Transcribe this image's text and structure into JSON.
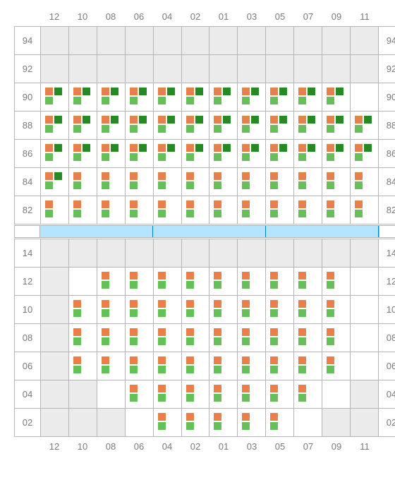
{
  "colors": {
    "orange": "#e8804c",
    "light_green": "#67bf5c",
    "dark_green": "#248a23",
    "grid_line": "#b5b5b5",
    "cell_grey": "#ebebeb",
    "cell_white": "#ffffff",
    "bar_fill": "#b4e4ff",
    "bar_border": "#0084c8",
    "label_text": "#7a7a7a"
  },
  "glyph_patterns": {
    "A": {
      "top_left": "orange",
      "top_right": "dark_green",
      "bot_left": "light_green"
    },
    "B": {
      "top_left": "orange",
      "top_right": null,
      "bot_left": "light_green"
    }
  },
  "column_labels": [
    "12",
    "10",
    "08",
    "06",
    "04",
    "02",
    "01",
    "03",
    "05",
    "07",
    "09",
    "11"
  ],
  "upper_rows": [
    {
      "label": "94",
      "cells": [
        0,
        0,
        0,
        0,
        0,
        0,
        0,
        0,
        0,
        0,
        0,
        0
      ]
    },
    {
      "label": "92",
      "cells": [
        0,
        0,
        0,
        0,
        0,
        0,
        0,
        0,
        0,
        0,
        0,
        0
      ]
    },
    {
      "label": "90",
      "cells": [
        "A",
        "A",
        "A",
        "A",
        "A",
        "A",
        "A",
        "A",
        "A",
        "A",
        "A",
        "W"
      ]
    },
    {
      "label": "88",
      "cells": [
        "A",
        "A",
        "A",
        "A",
        "A",
        "A",
        "A",
        "A",
        "A",
        "A",
        "A",
        "A"
      ]
    },
    {
      "label": "86",
      "cells": [
        "A",
        "A",
        "A",
        "A",
        "A",
        "A",
        "A",
        "A",
        "A",
        "A",
        "A",
        "A"
      ]
    },
    {
      "label": "84",
      "cells": [
        "A",
        "B",
        "B",
        "B",
        "B",
        "B",
        "B",
        "B",
        "B",
        "B",
        "B",
        "B"
      ]
    },
    {
      "label": "82",
      "cells": [
        "B",
        "B",
        "B",
        "B",
        "B",
        "B",
        "B",
        "B",
        "B",
        "B",
        "B",
        "B"
      ]
    }
  ],
  "bar_segments": [
    4,
    4,
    4
  ],
  "lower_rows": [
    {
      "label": "14",
      "cells": [
        0,
        0,
        0,
        0,
        0,
        0,
        0,
        0,
        0,
        0,
        0,
        0
      ]
    },
    {
      "label": "12",
      "cells": [
        0,
        "W",
        "B",
        "B",
        "B",
        "B",
        "B",
        "B",
        "B",
        "B",
        "B",
        "W"
      ]
    },
    {
      "label": "10",
      "cells": [
        0,
        "B",
        "B",
        "B",
        "B",
        "B",
        "B",
        "B",
        "B",
        "B",
        "B",
        "W"
      ]
    },
    {
      "label": "08",
      "cells": [
        0,
        "B",
        "B",
        "B",
        "B",
        "B",
        "B",
        "B",
        "B",
        "B",
        "B",
        "W"
      ]
    },
    {
      "label": "06",
      "cells": [
        0,
        "B",
        "B",
        "B",
        "B",
        "B",
        "B",
        "B",
        "B",
        "B",
        "B",
        "W"
      ]
    },
    {
      "label": "04",
      "cells": [
        0,
        0,
        "W",
        "B",
        "B",
        "B",
        "B",
        "B",
        "B",
        "B",
        "W",
        0
      ]
    },
    {
      "label": "02",
      "cells": [
        0,
        0,
        0,
        "W",
        "B",
        "B",
        "B",
        "B",
        "B",
        "W",
        0,
        0
      ]
    }
  ]
}
